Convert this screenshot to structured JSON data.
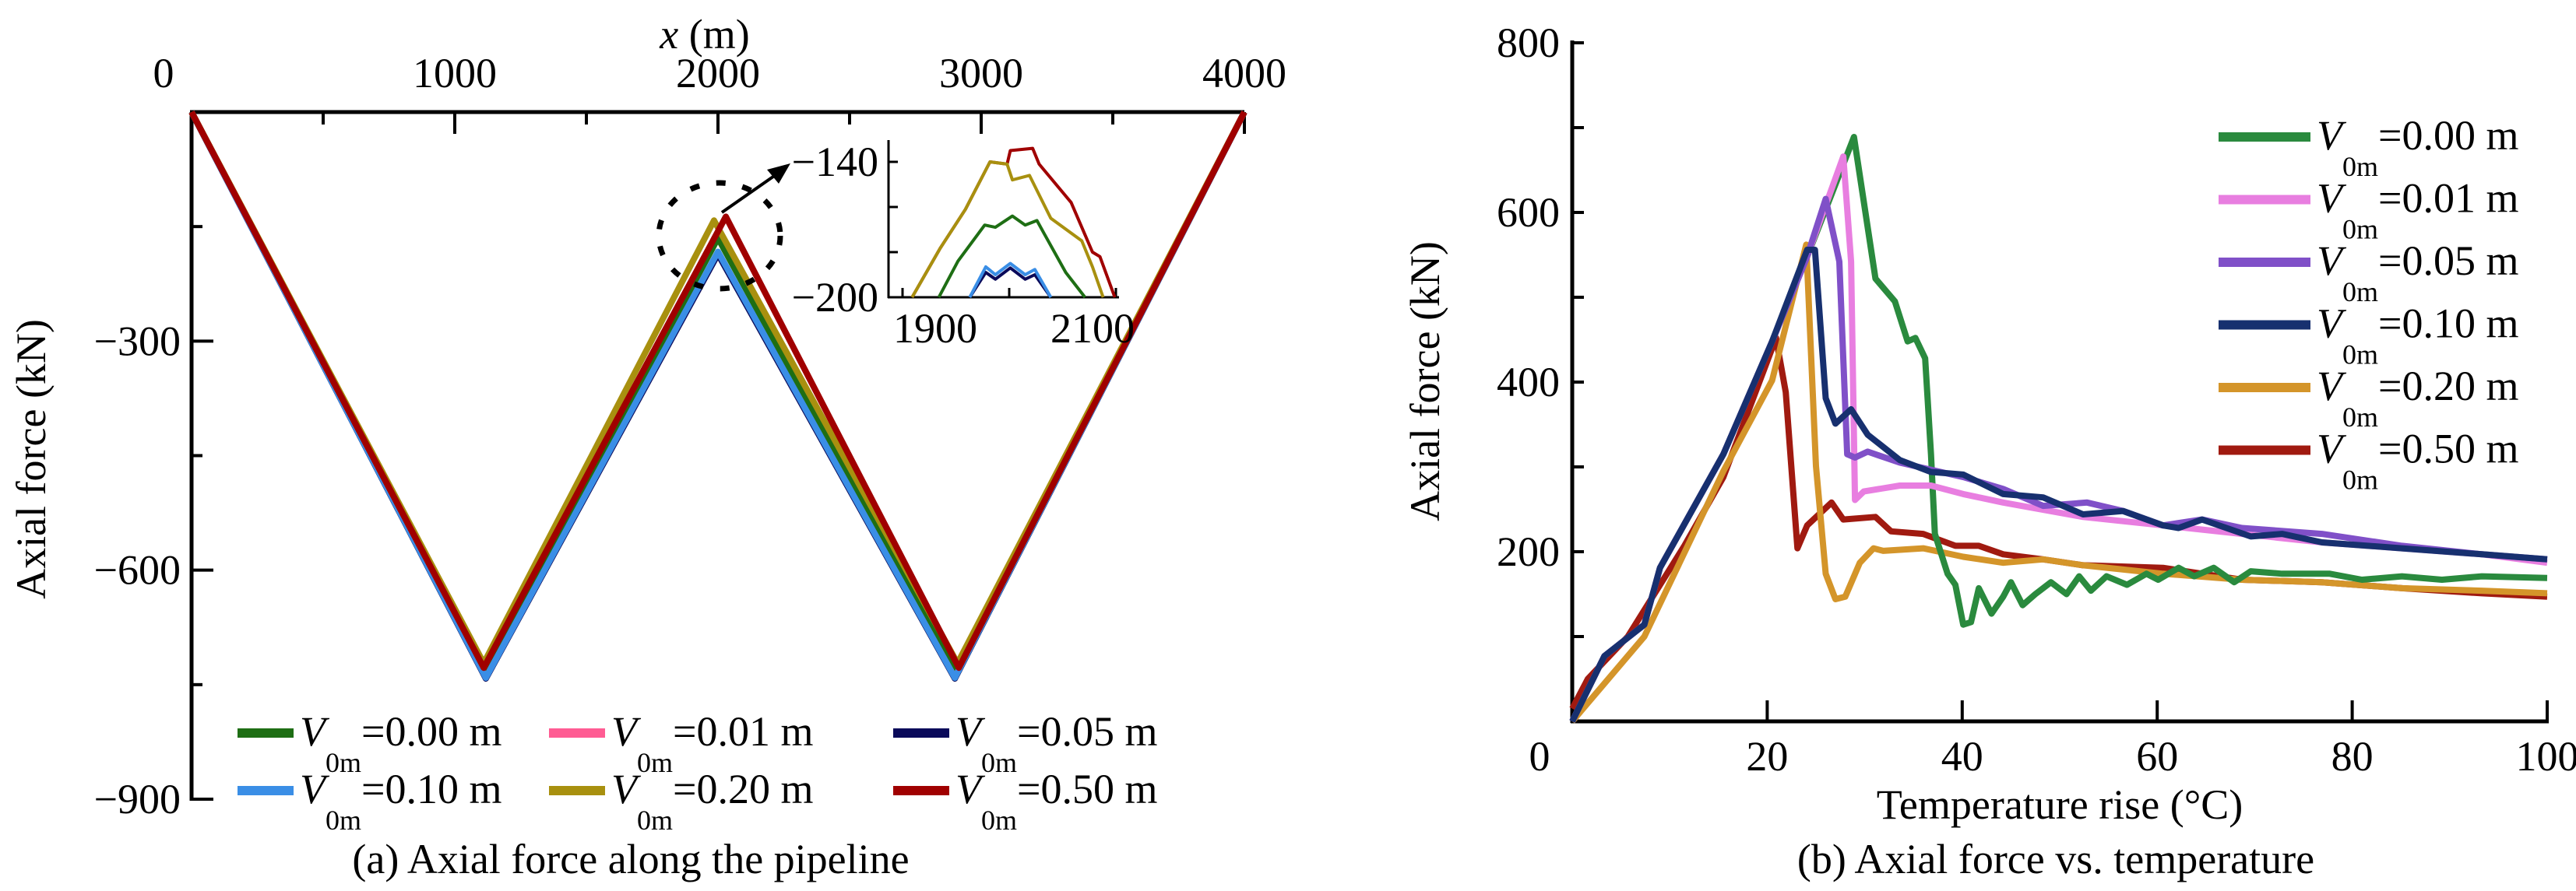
{
  "chart_data": [
    {
      "type": "line",
      "caption": "(a) Axial force along the pipeline",
      "xlabel_var": "x",
      "xlabel_unit": " (m)",
      "ylabel": "Axial force (kN)",
      "xlim": [
        0,
        4000
      ],
      "ylim": [
        -900,
        0
      ],
      "x_ticks": [
        0,
        1000,
        2000,
        3000,
        4000
      ],
      "y_ticks": [
        -300,
        -600,
        -900
      ],
      "x_tick_labels": [
        "0",
        "1000",
        "2000",
        "3000",
        "4000"
      ],
      "y_tick_labels": [
        "−300",
        "−600",
        "−900"
      ],
      "legend_position": "bottom",
      "series": [
        {
          "symbol": "V",
          "sub": "0m",
          "value": "=0.00 m",
          "color": "#1e6e14",
          "x": [
            0,
            1115,
            2000,
            2905,
            4000
          ],
          "y": [
            0,
            -735,
            -165,
            -735,
            0
          ]
        },
        {
          "symbol": "V",
          "sub": "0m",
          "value": "=0.01 m",
          "color": "#ff5c93",
          "x": [
            0,
            1118,
            2000,
            2900,
            4000
          ],
          "y": [
            0,
            -741,
            -185,
            -741,
            0
          ]
        },
        {
          "symbol": "V",
          "sub": "0m",
          "value": "=0.05 m",
          "color": "#0a0a5a",
          "x": [
            0,
            1118,
            2000,
            2900,
            4000
          ],
          "y": [
            0,
            -742,
            -186,
            -742,
            0
          ]
        },
        {
          "symbol": "V",
          "sub": "0m",
          "value": "=0.10 m",
          "color": "#3a8ee6",
          "x": [
            0,
            1118,
            2000,
            2900,
            4000
          ],
          "y": [
            0,
            -741,
            -183,
            -741,
            0
          ]
        },
        {
          "symbol": "V",
          "sub": "0m",
          "value": "=0.20 m",
          "color": "#a8900f",
          "x": [
            0,
            1110,
            1985,
            2910,
            4000
          ],
          "y": [
            0,
            -722,
            -142,
            -722,
            0
          ]
        },
        {
          "symbol": "V",
          "sub": "0m",
          "value": "=0.50 m",
          "color": "#a00000",
          "x": [
            0,
            1110,
            2030,
            2915,
            4000
          ],
          "y": [
            0,
            -728,
            -137,
            -728,
            0
          ]
        }
      ],
      "inset": {
        "xlim": [
          1888,
          2102
        ],
        "ylim": [
          -200,
          -130
        ],
        "x_ticks": [
          1900,
          2000,
          2100
        ],
        "y_ticks": [
          -140,
          -160,
          -180,
          -200
        ],
        "x_tick_labels": [
          {
            "v": 1900,
            "t": "1900"
          },
          {
            "v": 2100,
            "t": "2100"
          }
        ],
        "y_tick_labels": [
          {
            "v": -140,
            "t": "−140"
          },
          {
            "v": -200,
            "t": "−200"
          }
        ],
        "series": [
          {
            "color": "#0a0a5a",
            "x": [
              1963,
              1978,
              1987,
              2001,
              2015,
              2024,
              2039
            ],
            "y": [
              -200,
              -189,
              -192,
              -187,
              -192,
              -190,
              -200
            ]
          },
          {
            "color": "#3a8ee6",
            "x": [
              1963,
              1978,
              1987,
              2001,
              2015,
              2024,
              2039
            ],
            "y": [
              -200,
              -186.5,
              -190,
              -185,
              -190,
              -187.7,
              -200
            ]
          },
          {
            "color": "#1e6e14",
            "x": [
              1934,
              1952,
              1977,
              1987,
              2003,
              2015,
              2026,
              2033,
              2053,
              2071
            ],
            "y": [
              -200,
              -184,
              -168,
              -169,
              -164,
              -168,
              -166,
              -172,
              -189,
              -200
            ]
          },
          {
            "color": "#a00000",
            "x": [
              1909,
              1935,
              1959,
              1982,
              1998,
              2001,
              2022,
              2028,
              2058,
              2078,
              2085,
              2099
            ],
            "y": [
              -200,
              -178.5,
              -161,
              -140,
              -141,
              -135,
              -134,
              -141,
              -158,
              -180,
              -182,
              -200
            ]
          },
          {
            "color": "#a8900f",
            "x": [
              1909,
              1935,
              1959,
              1982,
              1998,
              2003,
              2019,
              2039,
              2068,
              2078,
              2088
            ],
            "y": [
              -200,
              -178.5,
              -161,
              -140,
              -141,
              -148,
              -146,
              -165,
              -175,
              -186.5,
              -200
            ]
          }
        ]
      }
    },
    {
      "type": "line",
      "caption": "(b) Axial force vs. temperature",
      "xlabel": "Temperature rise (°C)",
      "ylabel": "Axial force (kN)",
      "xlim": [
        0,
        100
      ],
      "ylim": [
        0,
        800
      ],
      "x_ticks": [
        0,
        20,
        40,
        60,
        80,
        100
      ],
      "y_ticks": [
        0,
        100,
        200,
        300,
        400,
        500,
        600,
        700,
        800
      ],
      "x_tick_labels": [
        "0",
        "20",
        "40",
        "60",
        "80",
        "100"
      ],
      "y_tick_labels": [
        {
          "v": 200,
          "t": "200"
        },
        {
          "v": 400,
          "t": "400"
        },
        {
          "v": 600,
          "t": "600"
        },
        {
          "v": 800,
          "t": "800"
        }
      ],
      "legend_position": "top-right",
      "series": [
        {
          "symbol": "V",
          "sub": "0m",
          "value": "=0.00 m",
          "color": "#2a8a3e",
          "x": [
            0,
            3.3,
            7.4,
            9,
            15.5,
            20.5,
            24,
            28.9,
            31.1,
            33.1,
            34.4,
            35.2,
            36.2,
            36.8,
            37.2,
            38.5,
            39.3,
            40.1,
            40.9,
            41.7,
            43,
            44.2,
            45,
            46.2,
            47.5,
            49.1,
            50.7,
            52,
            53.2,
            54.8,
            56.9,
            58.9,
            60.1,
            62.2,
            63.8,
            65.8,
            67.9,
            69.6,
            72.8,
            77.7,
            81,
            85.1,
            89.2,
            93.3,
            100
          ],
          "y": [
            0,
            77,
            114,
            181,
            315,
            448,
            545,
            689,
            522,
            495,
            448,
            452,
            428,
            315,
            221,
            174,
            161,
            114,
            117,
            157,
            127,
            147,
            164,
            137,
            150,
            164,
            150,
            171,
            154,
            171,
            161,
            174,
            167,
            181,
            171,
            181,
            164,
            177,
            174,
            174,
            167,
            171,
            167,
            171,
            169
          ]
        },
        {
          "symbol": "V",
          "sub": "0m",
          "value": "=0.01 m",
          "color": "#e87ee0",
          "x": [
            0,
            3.3,
            7.4,
            9,
            15.5,
            20.5,
            24,
            27.8,
            28.6,
            29,
            29.9,
            33.6,
            36.8,
            40.1,
            44.2,
            52.4,
            60.6,
            68.7,
            76.9,
            85.1,
            93.3,
            100
          ],
          "y": [
            0,
            77,
            114,
            181,
            315,
            448,
            545,
            666,
            542,
            261,
            271,
            278,
            278,
            268,
            258,
            241,
            231,
            221,
            211,
            204,
            197,
            187
          ]
        },
        {
          "symbol": "V",
          "sub": "0m",
          "value": "=0.05 m",
          "color": "#8050c8",
          "x": [
            0,
            3.3,
            7.4,
            9,
            15.5,
            20.5,
            24,
            26,
            27.4,
            28.2,
            29,
            30.3,
            33.6,
            40.1,
            44.2,
            48.3,
            52.8,
            56.5,
            60.6,
            64.6,
            68.7,
            76.9,
            85.1,
            93.3,
            100
          ],
          "y": [
            0,
            77,
            114,
            181,
            315,
            448,
            545,
            616,
            542,
            315,
            311,
            318,
            305,
            288,
            274,
            254,
            258,
            248,
            231,
            238,
            228,
            221,
            207,
            197,
            191
          ]
        },
        {
          "symbol": "V",
          "sub": "0m",
          "value": "=0.10 m",
          "color": "#17306f",
          "x": [
            0,
            3.3,
            7.4,
            9,
            15.5,
            20.5,
            24.1,
            24.9,
            26,
            27,
            28.6,
            30.3,
            33.6,
            36.8,
            40.1,
            44.2,
            48.3,
            52.4,
            56.5,
            60.6,
            62.2,
            64.6,
            69.6,
            72.8,
            76.9,
            85.1,
            93.3,
            100
          ],
          "y": [
            0,
            77,
            114,
            181,
            315,
            448,
            556,
            556,
            381,
            351,
            368,
            338,
            308,
            294,
            291,
            268,
            264,
            244,
            248,
            231,
            228,
            238,
            218,
            221,
            211,
            204,
            197,
            191
          ]
        },
        {
          "symbol": "V",
          "sub": "0m",
          "value": "=0.20 m",
          "color": "#d4952a",
          "x": [
            0,
            7.4,
            15.5,
            20.5,
            24,
            25,
            26,
            27,
            28,
            29.5,
            30.9,
            31.9,
            36,
            40.1,
            44.2,
            48.3,
            52.4,
            60.6,
            68.7,
            76.9,
            85.1,
            93.3,
            100
          ],
          "y": [
            0,
            100,
            295,
            402,
            562,
            301,
            174,
            144,
            147,
            187,
            204,
            201,
            204,
            194,
            187,
            191,
            184,
            174,
            167,
            164,
            157,
            154,
            151
          ]
        },
        {
          "symbol": "V",
          "sub": "0m",
          "value": "=0.50 m",
          "color": "#a01a10",
          "x": [
            0,
            1.6,
            5.7,
            11.5,
            15.5,
            20.9,
            21.9,
            23.1,
            24.1,
            26.6,
            27.8,
            31.1,
            32.7,
            36,
            39.3,
            41.7,
            44.2,
            48.3,
            52.4,
            60.6,
            68.7,
            76.9,
            85.1,
            93.3,
            100
          ],
          "y": [
            15,
            50,
            100,
            207,
            288,
            452,
            388,
            204,
            231,
            258,
            238,
            241,
            224,
            221,
            207,
            207,
            197,
            191,
            184,
            181,
            167,
            164,
            157,
            151,
            147
          ]
        }
      ]
    }
  ]
}
